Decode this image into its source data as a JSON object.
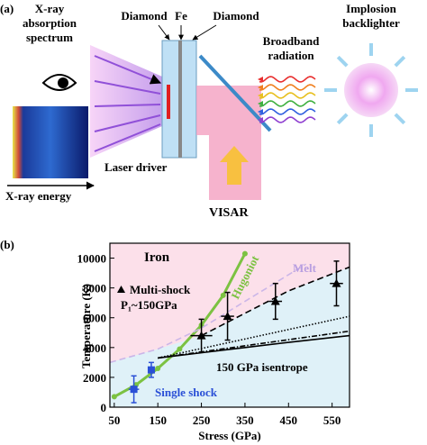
{
  "panel_a": {
    "label": "(a)",
    "spectrum_label": [
      "X-ray",
      "absorption",
      "spectrum"
    ],
    "energy_label": "X-ray energy",
    "diamond_left": "Diamond",
    "fe": "Fe",
    "diamond_right": "Diamond",
    "laser_label": "Laser driver",
    "visar_label": "VISAR",
    "radiation_label": [
      "Broadband",
      "radiation"
    ],
    "backlighter_label": [
      "Implosion",
      "backlighter"
    ]
  },
  "chart_data": {
    "type": "line",
    "panel_label": "(b)",
    "x_label": "Stress (GPa)",
    "y_label": "Temperature (K)",
    "xlim": [
      40,
      590
    ],
    "ylim": [
      0,
      11000
    ],
    "xticks": [
      50,
      150,
      250,
      350,
      450,
      550
    ],
    "yticks": [
      0,
      2000,
      4000,
      6000,
      8000,
      10000
    ],
    "series": [
      {
        "x": [
          50,
          100,
          150,
          200,
          250,
          300,
          350
        ],
        "values": [
          700,
          1500,
          2600,
          3900,
          5500,
          7500,
          10300
        ],
        "color": "#7cc242",
        "style": "solid",
        "markers": true
      },
      {
        "x": [
          40,
          150,
          250,
          350,
          490
        ],
        "values": [
          3000,
          3900,
          5300,
          7100,
          9600
        ],
        "color": "#cbb6e8",
        "style": "dashed",
        "markers": false
      },
      {
        "x": [
          250,
          350,
          450,
          590
        ],
        "values": [
          4800,
          6300,
          7800,
          9400
        ],
        "color": "#000000",
        "style": "dashed",
        "markers": false
      },
      {
        "x": [
          150,
          590
        ],
        "values": [
          3300,
          6100
        ],
        "color": "#000000",
        "style": "dotted",
        "markers": false
      },
      {
        "x": [
          150,
          590
        ],
        "values": [
          3300,
          5100
        ],
        "color": "#000000",
        "style": "dashdot",
        "markers": false
      },
      {
        "x": [
          150,
          250,
          350,
          450,
          590
        ],
        "values": [
          3300,
          3650,
          4000,
          4350,
          4800
        ],
        "color": "#000000",
        "style": "solid",
        "markers": false
      }
    ],
    "points": {
      "x": [
        95,
        135,
        250,
        310,
        420,
        560
      ],
      "values": [
        1200,
        2500,
        4800,
        6100,
        7100,
        8300
      ],
      "xerr": [
        12,
        8,
        25,
        15,
        15,
        15
      ],
      "yerr": [
        900,
        500,
        1100,
        1600,
        1200,
        1500
      ],
      "colors": [
        "#2a4fd6",
        "#2a4fd6",
        "#000000",
        "#000000",
        "#000000",
        "#000000"
      ],
      "markers": [
        "square",
        "square",
        "triangle",
        "triangle",
        "triangle",
        "triangle"
      ]
    },
    "annotations": [
      "Iron",
      "Hugoniot",
      "Melt",
      "Multi-shock",
      "P₁~150GPa",
      "150 GPa isentrope",
      "Single shock"
    ]
  }
}
